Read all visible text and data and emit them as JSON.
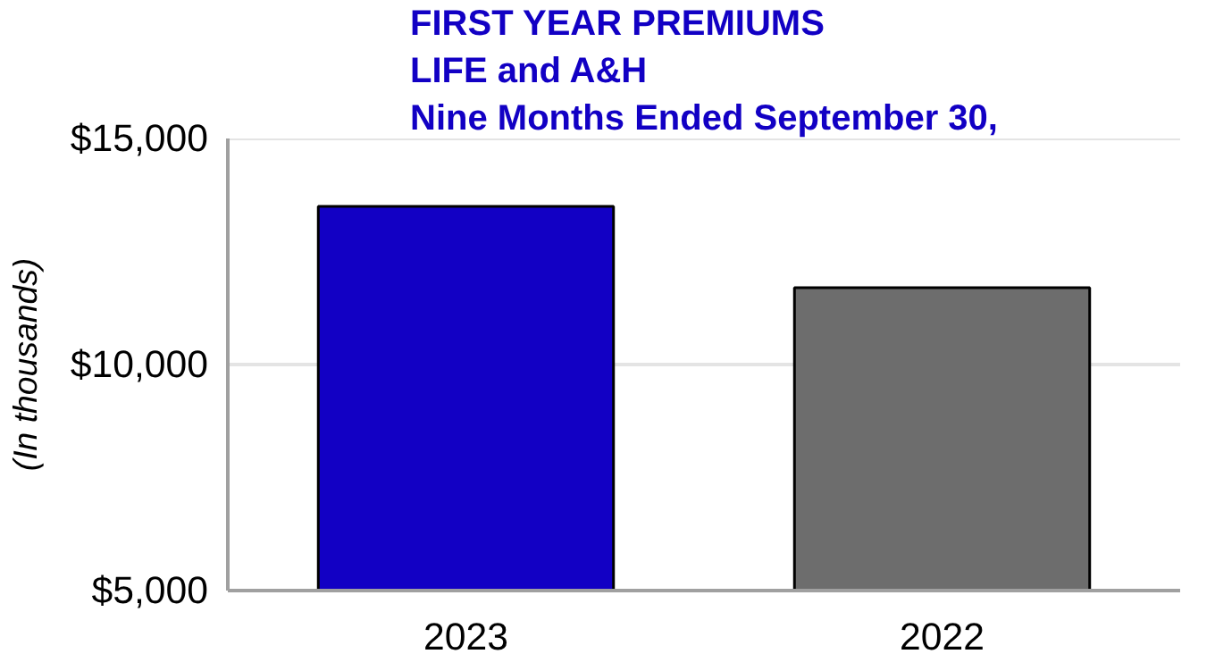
{
  "chart_data": {
    "type": "bar",
    "title": "FIRST YEAR PREMIUMS",
    "subtitle": "LIFE and A&H\nNine Months Ended September 30,",
    "ylabel": "(In thousands)",
    "categories": [
      "2023",
      "2022"
    ],
    "values": [
      13500,
      11700
    ],
    "colors": [
      "#1200c4",
      "#6d6d6d"
    ],
    "ylim": [
      5000,
      15000
    ],
    "yticks": [
      {
        "value": 5000,
        "label": "$5,000"
      },
      {
        "value": 10000,
        "label": "$10,000"
      },
      {
        "value": 15000,
        "label": "$15,000"
      }
    ],
    "grid": "y"
  }
}
